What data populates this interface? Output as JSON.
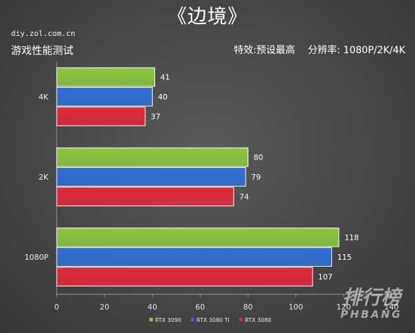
{
  "header": {
    "title": "《边境》",
    "source": "diy.zol.com.cn",
    "subtitle": "游戏性能测试",
    "effects": "特效:预设最高",
    "resolution": "分辨率: 1080P/2K/4K"
  },
  "watermark": {
    "cn": "排行榜",
    "en": "PHBANG"
  },
  "colors": {
    "rtx3090": "#8cc63f",
    "rtx3080ti": "#2f6fd6",
    "rtx3080": "#e0283a"
  },
  "chart_data": {
    "type": "bar",
    "orientation": "horizontal",
    "categories": [
      "4K",
      "2K",
      "1080P"
    ],
    "series": [
      {
        "name": "RTX 3090",
        "values": [
          41,
          80,
          118
        ]
      },
      {
        "name": "RTX 3080 Ti",
        "values": [
          40,
          79,
          115
        ]
      },
      {
        "name": "RTX 3080",
        "values": [
          37,
          74,
          107
        ]
      }
    ],
    "x_ticks": [
      0,
      20,
      40,
      60,
      80,
      100,
      120,
      140
    ],
    "xlim": [
      0,
      140
    ],
    "legend_position": "bottom"
  }
}
